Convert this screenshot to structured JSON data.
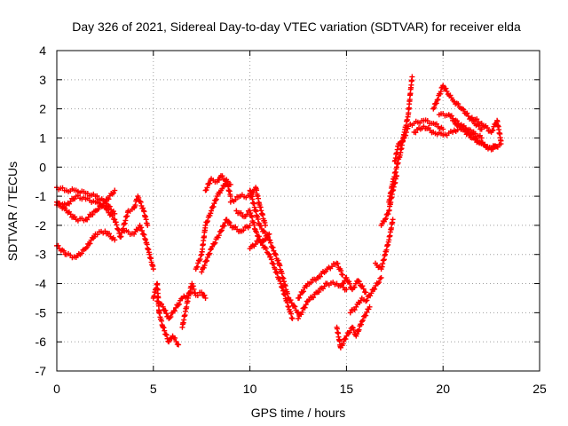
{
  "chart_data": {
    "type": "scatter",
    "title": "Day 326 of 2021, Sidereal Day-to-day VTEC variation (SDTVAR) for receiver elda",
    "xlabel": "GPS time / hours",
    "ylabel": "SDTVAR / TECUs",
    "xlim": [
      0,
      25
    ],
    "ylim": [
      -7,
      4
    ],
    "xticks": [
      "0",
      "5",
      "10",
      "15",
      "20",
      "25"
    ],
    "yticks": [
      "-7",
      "-6",
      "-5",
      "-4",
      "-3",
      "-2",
      "-1",
      "0",
      "1",
      "2",
      "3",
      "4"
    ],
    "grid": true,
    "marker": "plus",
    "colors": {
      "points": "#ff0000",
      "grid": "#a0a0a0",
      "axes": "#000000"
    },
    "series": [
      {
        "values": [
          [
            0.0,
            -0.7
          ],
          [
            0.5,
            -0.8
          ],
          [
            1.0,
            -0.8
          ],
          [
            1.5,
            -0.9
          ],
          [
            2.0,
            -1.0
          ],
          [
            2.5,
            -1.2
          ],
          [
            3.0,
            -0.8
          ],
          [
            0.0,
            -1.2
          ],
          [
            0.5,
            -1.5
          ],
          [
            1.0,
            -1.8
          ],
          [
            1.5,
            -1.8
          ],
          [
            2.0,
            -1.5
          ],
          [
            2.5,
            -1.2
          ],
          [
            3.0,
            -1.6
          ],
          [
            0.0,
            -2.7
          ],
          [
            0.5,
            -3.0
          ],
          [
            1.0,
            -3.1
          ],
          [
            1.5,
            -2.8
          ],
          [
            2.0,
            -2.3
          ],
          [
            2.5,
            -2.2
          ],
          [
            3.0,
            -2.5
          ],
          [
            0.0,
            -1.3
          ],
          [
            0.5,
            -1.3
          ],
          [
            1.0,
            -1.0
          ],
          [
            1.5,
            -1.1
          ],
          [
            2.0,
            -1.2
          ],
          [
            2.5,
            -1.4
          ],
          [
            3.0,
            -1.8
          ],
          [
            3.3,
            -2.4
          ],
          [
            3.7,
            -1.5
          ],
          [
            4.0,
            -1.4
          ],
          [
            4.2,
            -1.0
          ],
          [
            4.5,
            -1.5
          ],
          [
            4.7,
            -2.0
          ],
          [
            3.5,
            -2.2
          ],
          [
            4.0,
            -2.3
          ],
          [
            4.3,
            -2.0
          ],
          [
            4.6,
            -2.5
          ],
          [
            4.8,
            -3.0
          ],
          [
            5.0,
            -3.5
          ],
          [
            5.0,
            -4.5
          ],
          [
            5.2,
            -4.0
          ],
          [
            5.3,
            -5.0
          ],
          [
            5.5,
            -5.5
          ],
          [
            5.8,
            -6.0
          ],
          [
            6.0,
            -5.8
          ],
          [
            6.3,
            -6.1
          ],
          [
            5.2,
            -4.6
          ],
          [
            5.5,
            -4.8
          ],
          [
            5.8,
            -5.2
          ],
          [
            6.0,
            -5.0
          ],
          [
            6.5,
            -4.5
          ],
          [
            7.0,
            -4.3
          ],
          [
            6.5,
            -5.5
          ],
          [
            6.8,
            -4.5
          ],
          [
            7.0,
            -4.0
          ],
          [
            7.2,
            -4.4
          ],
          [
            7.5,
            -4.3
          ],
          [
            7.7,
            -4.5
          ],
          [
            7.2,
            -3.5
          ],
          [
            7.5,
            -3.0
          ],
          [
            7.7,
            -2.0
          ],
          [
            8.0,
            -1.5
          ],
          [
            8.3,
            -1.0
          ],
          [
            8.5,
            -0.8
          ],
          [
            8.8,
            -0.5
          ],
          [
            9.0,
            -1.0
          ],
          [
            7.7,
            -0.8
          ],
          [
            8.0,
            -0.4
          ],
          [
            8.3,
            -0.5
          ],
          [
            8.5,
            -0.3
          ],
          [
            9.0,
            -0.6
          ],
          [
            7.5,
            -3.6
          ],
          [
            8.0,
            -2.8
          ],
          [
            8.5,
            -2.2
          ],
          [
            8.8,
            -1.8
          ],
          [
            9.0,
            -2.0
          ],
          [
            9.5,
            -2.2
          ],
          [
            10.0,
            -2.0
          ],
          [
            9.0,
            -1.2
          ],
          [
            9.5,
            -1.0
          ],
          [
            10.0,
            -1.0
          ],
          [
            10.3,
            -0.7
          ],
          [
            10.5,
            -1.3
          ],
          [
            10.8,
            -2.0
          ],
          [
            9.3,
            -1.5
          ],
          [
            9.7,
            -1.7
          ],
          [
            10.0,
            -1.5
          ],
          [
            10.3,
            -2.2
          ],
          [
            10.6,
            -2.6
          ],
          [
            11.0,
            -2.3
          ],
          [
            10.0,
            -2.8
          ],
          [
            10.5,
            -2.5
          ],
          [
            11.0,
            -3.0
          ],
          [
            11.3,
            -3.5
          ],
          [
            11.6,
            -4.0
          ],
          [
            12.0,
            -4.8
          ],
          [
            12.2,
            -5.2
          ],
          [
            10.0,
            -0.8
          ],
          [
            10.5,
            -2.0
          ],
          [
            11.0,
            -2.5
          ],
          [
            11.5,
            -3.3
          ],
          [
            12.0,
            -4.5
          ],
          [
            12.5,
            -5.0
          ],
          [
            12.5,
            -4.5
          ],
          [
            13.0,
            -4.0
          ],
          [
            13.5,
            -3.8
          ],
          [
            14.0,
            -3.5
          ],
          [
            14.5,
            -3.3
          ],
          [
            14.8,
            -3.7
          ],
          [
            12.5,
            -5.2
          ],
          [
            13.0,
            -4.6
          ],
          [
            13.5,
            -4.3
          ],
          [
            14.0,
            -4.0
          ],
          [
            14.5,
            -4.0
          ],
          [
            15.0,
            -4.2
          ],
          [
            14.5,
            -5.5
          ],
          [
            14.7,
            -6.2
          ],
          [
            15.0,
            -5.8
          ],
          [
            15.3,
            -5.5
          ],
          [
            15.5,
            -5.8
          ],
          [
            15.8,
            -5.3
          ],
          [
            16.2,
            -4.8
          ],
          [
            14.8,
            -4.0
          ],
          [
            15.0,
            -3.8
          ],
          [
            15.3,
            -4.2
          ],
          [
            15.6,
            -3.9
          ],
          [
            16.0,
            -4.3
          ],
          [
            15.2,
            -5.0
          ],
          [
            15.5,
            -4.8
          ],
          [
            15.8,
            -4.5
          ],
          [
            16.0,
            -4.6
          ],
          [
            16.4,
            -4.2
          ],
          [
            16.8,
            -3.8
          ],
          [
            16.5,
            -3.3
          ],
          [
            16.8,
            -3.5
          ],
          [
            17.0,
            -3.0
          ],
          [
            17.2,
            -2.5
          ],
          [
            17.4,
            -1.8
          ],
          [
            16.8,
            -2.0
          ],
          [
            17.0,
            -1.8
          ],
          [
            17.2,
            -1.5
          ],
          [
            17.4,
            -0.8
          ],
          [
            17.6,
            -0.3
          ],
          [
            17.2,
            -1.2
          ],
          [
            17.4,
            -0.5
          ],
          [
            17.6,
            0.0
          ],
          [
            17.8,
            0.5
          ],
          [
            18.0,
            1.2
          ],
          [
            18.2,
            1.8
          ],
          [
            18.3,
            2.5
          ],
          [
            18.4,
            3.1
          ],
          [
            17.5,
            0.2
          ],
          [
            17.7,
            0.8
          ],
          [
            18.0,
            1.0
          ],
          [
            18.2,
            1.4
          ],
          [
            18.5,
            1.5
          ],
          [
            19.0,
            1.6
          ],
          [
            19.5,
            1.5
          ],
          [
            20.0,
            1.3
          ],
          [
            18.5,
            1.2
          ],
          [
            19.0,
            1.4
          ],
          [
            19.5,
            1.2
          ],
          [
            20.0,
            1.1
          ],
          [
            20.5,
            1.2
          ],
          [
            21.0,
            1.4
          ],
          [
            21.5,
            1.2
          ],
          [
            22.0,
            1.0
          ],
          [
            19.5,
            2.0
          ],
          [
            19.7,
            2.3
          ],
          [
            20.0,
            2.8
          ],
          [
            20.2,
            2.6
          ],
          [
            20.5,
            2.3
          ],
          [
            21.0,
            2.0
          ],
          [
            21.5,
            1.6
          ],
          [
            22.0,
            1.3
          ],
          [
            19.8,
            1.8
          ],
          [
            20.3,
            1.8
          ],
          [
            20.8,
            1.5
          ],
          [
            21.3,
            1.2
          ],
          [
            21.8,
            0.9
          ],
          [
            22.3,
            0.7
          ],
          [
            22.8,
            0.7
          ],
          [
            20.5,
            1.6
          ],
          [
            21.0,
            1.3
          ],
          [
            21.5,
            1.0
          ],
          [
            22.0,
            0.8
          ],
          [
            22.5,
            0.6
          ],
          [
            23.0,
            0.8
          ],
          [
            21.5,
            1.7
          ],
          [
            22.0,
            1.5
          ],
          [
            22.5,
            1.2
          ],
          [
            22.8,
            1.6
          ],
          [
            23.0,
            0.9
          ]
        ]
      }
    ]
  }
}
